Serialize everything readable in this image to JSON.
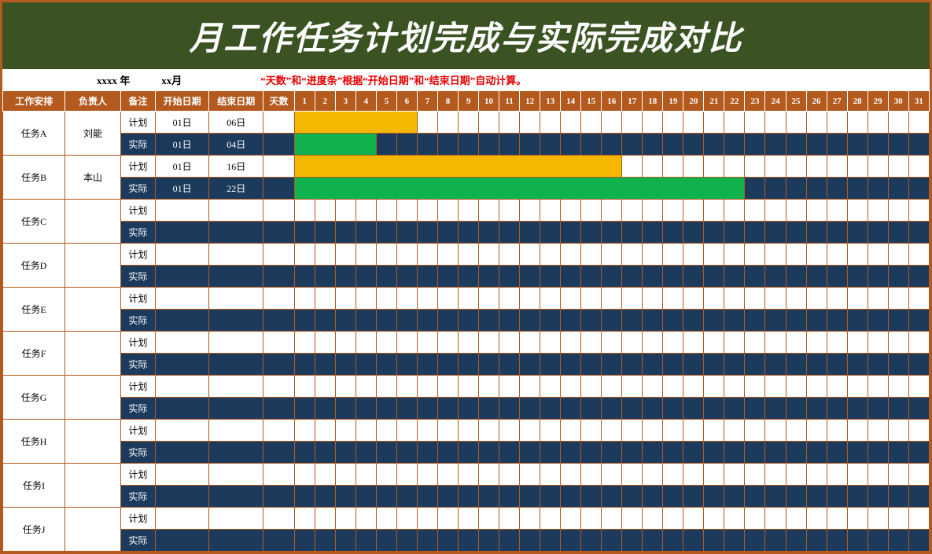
{
  "title": "月工作任务计划完成与实际完成对比",
  "subheader": {
    "year_label": "xxxx 年",
    "month_label": "xx月",
    "note": "“天数”和“进度条”根据“开始日期”和“结束日期”自动计算。"
  },
  "columns": {
    "task": "工作安排",
    "owner": "负责人",
    "note": "备注",
    "start": "开始日期",
    "end": "结束日期",
    "days": "天数"
  },
  "day_count": 31,
  "row_types": {
    "plan": "计划",
    "actual": "实际"
  },
  "colors": {
    "header_bg": "#b45a1e",
    "title_bg": "#3b5323",
    "actual_row_bg": "#1b3a5c",
    "plan_bar": "#f5b800",
    "actual_bar": "#0fb24d",
    "border": "#b45a1e",
    "note_text": "#e60000"
  },
  "tasks": [
    {
      "name": "任务A",
      "owner": "刘能",
      "plan": {
        "start": "01日",
        "end": "06日",
        "from": 1,
        "to": 6
      },
      "actual": {
        "start": "01日",
        "end": "04日",
        "from": 1,
        "to": 4
      }
    },
    {
      "name": "任务B",
      "owner": "本山",
      "plan": {
        "start": "01日",
        "end": "16日",
        "from": 1,
        "to": 16
      },
      "actual": {
        "start": "01日",
        "end": "22日",
        "from": 1,
        "to": 22
      }
    },
    {
      "name": "任务C",
      "owner": "",
      "plan": {},
      "actual": {}
    },
    {
      "name": "任务D",
      "owner": "",
      "plan": {},
      "actual": {}
    },
    {
      "name": "任务E",
      "owner": "",
      "plan": {},
      "actual": {}
    },
    {
      "name": "任务F",
      "owner": "",
      "plan": {},
      "actual": {}
    },
    {
      "name": "任务G",
      "owner": "",
      "plan": {},
      "actual": {}
    },
    {
      "name": "任务H",
      "owner": "",
      "plan": {},
      "actual": {}
    },
    {
      "name": "任务I",
      "owner": "",
      "plan": {},
      "actual": {}
    },
    {
      "name": "任务J",
      "owner": "",
      "plan": {},
      "actual": {}
    }
  ]
}
